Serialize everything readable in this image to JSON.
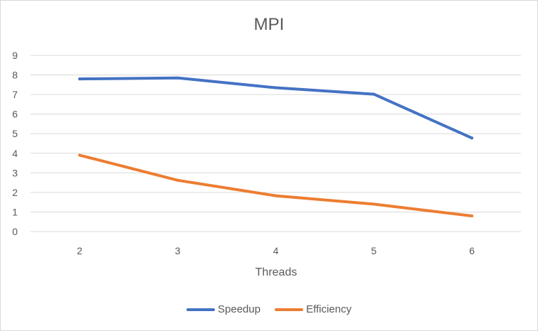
{
  "chart_data": {
    "type": "line",
    "title": "MPI",
    "xlabel": "Threads",
    "ylabel": "",
    "categories": [
      "2",
      "3",
      "4",
      "5",
      "6"
    ],
    "ylim": [
      0,
      9
    ],
    "yticks": [
      "0",
      "1",
      "2",
      "3",
      "4",
      "5",
      "6",
      "7",
      "8",
      "9"
    ],
    "grid": true,
    "legend_position": "bottom",
    "series": [
      {
        "name": "Speedup",
        "color": "#4472C4",
        "values": [
          7.8,
          7.85,
          7.35,
          7.02,
          4.78
        ]
      },
      {
        "name": "Efficiency",
        "color": "#ED7D31",
        "values": [
          3.9,
          2.62,
          1.83,
          1.4,
          0.8
        ]
      }
    ]
  }
}
